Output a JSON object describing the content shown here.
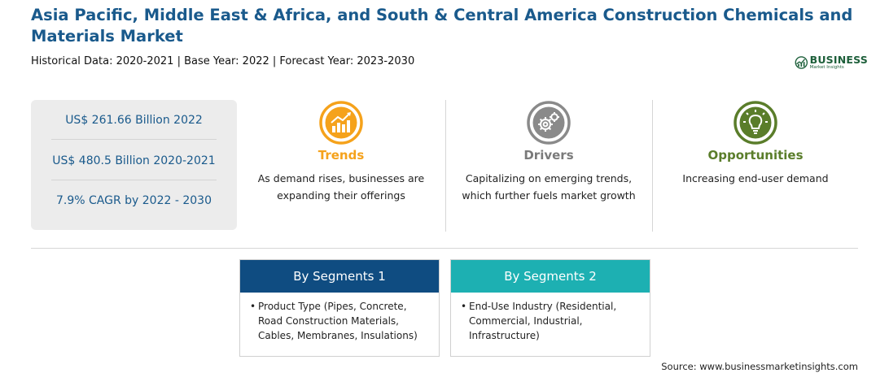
{
  "title": "Asia Pacific, Middle East & Africa, and South & Central America Construction Chemicals and Materials Market",
  "subtitle": "Historical Data: 2020-2021 | Base Year: 2022 | Forecast Year: 2023-2030",
  "logo": {
    "name": "BUSINESS",
    "tagline": "Market Insights"
  },
  "stats": [
    "US$ 261.66 Billion 2022",
    "US$ 480.5 Billion 2020-2021",
    "7.9% CAGR by 2022 - 2030"
  ],
  "columns": [
    {
      "heading": "Trends",
      "text": "As demand rises, businesses are expanding their offerings",
      "icon": "trend-chart-icon",
      "color": "#f5a21b"
    },
    {
      "heading": "Drivers",
      "text": "Capitalizing on emerging trends, which further fuels market growth",
      "icon": "gears-icon",
      "color": "#7a7a7a"
    },
    {
      "heading": "Opportunities",
      "text": "Increasing end-user demand",
      "icon": "lightbulb-icon",
      "color": "#5a7d2a"
    }
  ],
  "segments": [
    {
      "title": "By Segments 1",
      "color": "#0f4c81",
      "items": [
        "Product Type (Pipes, Concrete, Road Construction Materials, Cables, Membranes, Insulations)"
      ]
    },
    {
      "title": "By Segments 2",
      "color": "#1db0b2",
      "items": [
        "End-Use Industry (Residential, Commercial, Industrial, Infrastructure)"
      ]
    }
  ],
  "source": "Source: www.businessmarketinsights.com"
}
